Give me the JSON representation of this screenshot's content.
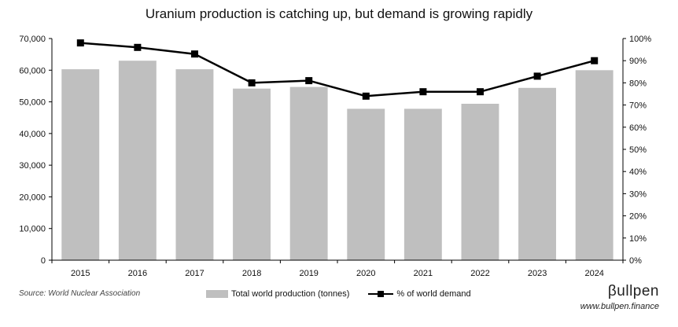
{
  "chart_data": {
    "type": "bar+line",
    "title": "Uranium production is catching up, but demand is growing rapidly",
    "categories": [
      "2015",
      "2016",
      "2017",
      "2018",
      "2019",
      "2020",
      "2021",
      "2022",
      "2023",
      "2024"
    ],
    "series": [
      {
        "name": "Total world production (tonnes)",
        "type": "bar",
        "axis": "left",
        "values": [
          60300,
          63000,
          60300,
          54200,
          54700,
          47800,
          47800,
          49400,
          54400,
          60000
        ]
      },
      {
        "name": "% of world demand",
        "type": "line",
        "axis": "right",
        "values": [
          98,
          96,
          93,
          80,
          81,
          74,
          76,
          76,
          83,
          90
        ]
      }
    ],
    "y_left": {
      "min": 0,
      "max": 70000,
      "ticks": [
        "0",
        "10,000",
        "20,000",
        "30,000",
        "40,000",
        "50,000",
        "60,000",
        "70,000"
      ]
    },
    "y_right": {
      "min": 0,
      "max": 100,
      "ticks": [
        "0%",
        "10%",
        "20%",
        "30%",
        "40%",
        "50%",
        "60%",
        "70%",
        "80%",
        "90%",
        "100%"
      ]
    },
    "grid": false,
    "legend_position": "bottom"
  },
  "footer": {
    "source": "Source: World Nuclear Association",
    "brand": "βullpen",
    "url": "www.bullpen.finance"
  },
  "colors": {
    "bar": "#bfbfbf",
    "line": "#000000",
    "axis": "#000000"
  }
}
